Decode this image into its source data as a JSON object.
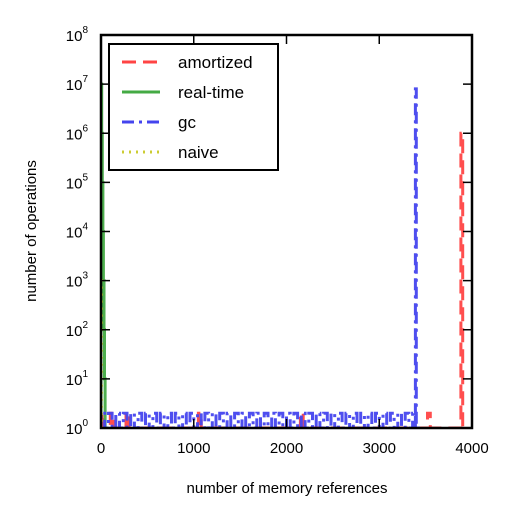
{
  "chart_data": {
    "type": "line",
    "title": "",
    "xlabel": "number of memory references",
    "ylabel": "number of operations",
    "xlim": [
      0,
      4000
    ],
    "ylim": [
      1,
      100000000
    ],
    "yscale": "log",
    "grid": false,
    "legend_placement": "top-left",
    "xticks": [
      0,
      1000,
      2000,
      3000,
      4000
    ],
    "xtick_labels": [
      "0",
      "1000",
      "2000",
      "3000",
      "4000"
    ],
    "yticks": [
      1,
      10,
      100,
      1000,
      10000,
      100000,
      1000000,
      10000000,
      100000000
    ],
    "ytick_labels": [
      {
        "base": "10",
        "exp": "0"
      },
      {
        "base": "10",
        "exp": "1"
      },
      {
        "base": "10",
        "exp": "2"
      },
      {
        "base": "10",
        "exp": "3"
      },
      {
        "base": "10",
        "exp": "4"
      },
      {
        "base": "10",
        "exp": "5"
      },
      {
        "base": "10",
        "exp": "6"
      },
      {
        "base": "10",
        "exp": "7"
      },
      {
        "base": "10",
        "exp": "8"
      }
    ],
    "series": [
      {
        "name": "amortized",
        "color": "#ff4444",
        "dash": "dashed",
        "points": [
          [
            0,
            1
          ],
          [
            10,
            1
          ],
          [
            10,
            2
          ],
          [
            15,
            2
          ],
          [
            15,
            1
          ],
          [
            100,
            1
          ],
          [
            100,
            2
          ],
          [
            130,
            2
          ],
          [
            130,
            1
          ],
          [
            270,
            1
          ],
          [
            270,
            2
          ],
          [
            300,
            2
          ],
          [
            300,
            1
          ],
          [
            1050,
            1
          ],
          [
            1050,
            2
          ],
          [
            1080,
            2
          ],
          [
            1080,
            1
          ],
          [
            2150,
            1
          ],
          [
            2150,
            2
          ],
          [
            2180,
            2
          ],
          [
            2180,
            1
          ],
          [
            3520,
            1
          ],
          [
            3520,
            2
          ],
          [
            3550,
            2
          ],
          [
            3550,
            1
          ],
          [
            3880,
            1
          ],
          [
            3880,
            1000000
          ],
          [
            3900,
            1000000
          ],
          [
            3900,
            1
          ]
        ]
      },
      {
        "name": "real-time",
        "color": "#44aa44",
        "dash": "solid",
        "points": [
          [
            0,
            1
          ],
          [
            0,
            10000000
          ],
          [
            8,
            10000000
          ],
          [
            8,
            1000000
          ],
          [
            14,
            1000000
          ],
          [
            14,
            100000
          ],
          [
            20,
            100000
          ],
          [
            20,
            10000
          ],
          [
            26,
            10000
          ],
          [
            26,
            1000
          ],
          [
            32,
            1000
          ],
          [
            32,
            100
          ],
          [
            38,
            100
          ],
          [
            38,
            10
          ],
          [
            44,
            10
          ],
          [
            44,
            1
          ]
        ]
      },
      {
        "name": "gc",
        "color": "#4444ee",
        "dash": "dashdot",
        "points": [
          [
            0,
            1
          ],
          [
            0,
            2
          ],
          [
            40,
            2
          ],
          [
            40,
            1
          ],
          [
            80,
            1
          ],
          [
            80,
            2
          ],
          [
            120,
            2
          ],
          [
            120,
            1
          ],
          [
            160,
            1
          ],
          [
            160,
            2
          ],
          [
            200,
            2
          ],
          [
            200,
            1
          ],
          [
            240,
            1
          ],
          [
            240,
            2
          ],
          [
            280,
            2
          ],
          [
            280,
            1
          ],
          [
            320,
            1
          ],
          [
            320,
            2
          ],
          [
            360,
            2
          ],
          [
            360,
            1
          ],
          [
            400,
            1
          ],
          [
            400,
            2
          ],
          [
            440,
            2
          ],
          [
            440,
            1
          ],
          [
            480,
            1
          ],
          [
            480,
            2
          ],
          [
            520,
            2
          ],
          [
            520,
            1
          ],
          [
            560,
            1
          ],
          [
            560,
            2
          ],
          [
            600,
            2
          ],
          [
            600,
            1
          ],
          [
            640,
            1
          ],
          [
            640,
            2
          ],
          [
            680,
            2
          ],
          [
            680,
            1
          ],
          [
            720,
            1
          ],
          [
            720,
            2
          ],
          [
            760,
            2
          ],
          [
            760,
            1
          ],
          [
            800,
            1
          ],
          [
            800,
            2
          ],
          [
            840,
            2
          ],
          [
            840,
            1
          ],
          [
            880,
            1
          ],
          [
            880,
            2
          ],
          [
            920,
            2
          ],
          [
            920,
            1
          ],
          [
            960,
            1
          ],
          [
            960,
            2
          ],
          [
            1000,
            2
          ],
          [
            1000,
            1
          ],
          [
            1040,
            1
          ],
          [
            1040,
            2
          ],
          [
            1080,
            2
          ],
          [
            1080,
            1
          ],
          [
            1120,
            1
          ],
          [
            1120,
            2
          ],
          [
            1160,
            2
          ],
          [
            1160,
            1
          ],
          [
            1200,
            1
          ],
          [
            1200,
            2
          ],
          [
            1240,
            2
          ],
          [
            1240,
            1
          ],
          [
            1280,
            1
          ],
          [
            1280,
            2
          ],
          [
            1320,
            2
          ],
          [
            1320,
            1
          ],
          [
            1360,
            1
          ],
          [
            1360,
            2
          ],
          [
            1400,
            2
          ],
          [
            1400,
            1
          ],
          [
            1440,
            1
          ],
          [
            1440,
            2
          ],
          [
            1480,
            2
          ],
          [
            1480,
            1
          ],
          [
            1520,
            1
          ],
          [
            1520,
            2
          ],
          [
            1560,
            2
          ],
          [
            1560,
            1
          ],
          [
            1600,
            1
          ],
          [
            1600,
            2
          ],
          [
            1640,
            2
          ],
          [
            1640,
            1
          ],
          [
            1680,
            1
          ],
          [
            1680,
            2
          ],
          [
            1720,
            2
          ],
          [
            1720,
            1
          ],
          [
            1760,
            1
          ],
          [
            1760,
            2
          ],
          [
            1800,
            2
          ],
          [
            1800,
            1
          ],
          [
            1840,
            1
          ],
          [
            1840,
            2
          ],
          [
            1880,
            2
          ],
          [
            1880,
            1
          ],
          [
            1920,
            1
          ],
          [
            1920,
            2
          ],
          [
            1960,
            2
          ],
          [
            1960,
            1
          ],
          [
            2000,
            1
          ],
          [
            2000,
            2
          ],
          [
            2040,
            2
          ],
          [
            2040,
            1
          ],
          [
            2080,
            1
          ],
          [
            2080,
            2
          ],
          [
            2120,
            2
          ],
          [
            2120,
            1
          ],
          [
            2160,
            1
          ],
          [
            2160,
            2
          ],
          [
            2200,
            2
          ],
          [
            2200,
            1
          ],
          [
            2240,
            1
          ],
          [
            2240,
            2
          ],
          [
            2280,
            2
          ],
          [
            2280,
            1
          ],
          [
            2320,
            1
          ],
          [
            2320,
            2
          ],
          [
            2360,
            2
          ],
          [
            2360,
            1
          ],
          [
            2400,
            1
          ],
          [
            2400,
            2
          ],
          [
            2440,
            2
          ],
          [
            2440,
            1
          ],
          [
            2480,
            1
          ],
          [
            2480,
            2
          ],
          [
            2520,
            2
          ],
          [
            2520,
            1
          ],
          [
            2560,
            1
          ],
          [
            2560,
            2
          ],
          [
            2600,
            2
          ],
          [
            2600,
            1
          ],
          [
            2640,
            1
          ],
          [
            2640,
            2
          ],
          [
            2680,
            2
          ],
          [
            2680,
            1
          ],
          [
            2720,
            1
          ],
          [
            2720,
            2
          ],
          [
            2760,
            2
          ],
          [
            2760,
            1
          ],
          [
            2800,
            1
          ],
          [
            2800,
            2
          ],
          [
            2840,
            2
          ],
          [
            2840,
            1
          ],
          [
            2880,
            1
          ],
          [
            2880,
            2
          ],
          [
            2920,
            2
          ],
          [
            2920,
            1
          ],
          [
            2960,
            1
          ],
          [
            2960,
            2
          ],
          [
            3000,
            2
          ],
          [
            3000,
            1
          ],
          [
            3040,
            1
          ],
          [
            3040,
            2
          ],
          [
            3080,
            2
          ],
          [
            3080,
            1
          ],
          [
            3120,
            1
          ],
          [
            3120,
            2
          ],
          [
            3160,
            2
          ],
          [
            3160,
            1
          ],
          [
            3200,
            1
          ],
          [
            3200,
            2
          ],
          [
            3240,
            2
          ],
          [
            3240,
            1
          ],
          [
            3280,
            1
          ],
          [
            3280,
            2
          ],
          [
            3320,
            2
          ],
          [
            3320,
            1
          ],
          [
            3360,
            1
          ],
          [
            3360,
            2
          ],
          [
            3390,
            2
          ],
          [
            3390,
            1
          ],
          [
            3390,
            8000000
          ],
          [
            3400,
            8000000
          ],
          [
            3400,
            1
          ],
          [
            3440,
            1
          ]
        ]
      },
      {
        "name": "naive",
        "color": "#cccc33",
        "dash": "dotted",
        "points": [
          [
            0,
            1
          ],
          [
            0,
            1000
          ],
          [
            4,
            1000
          ],
          [
            4,
            1
          ]
        ]
      }
    ]
  }
}
